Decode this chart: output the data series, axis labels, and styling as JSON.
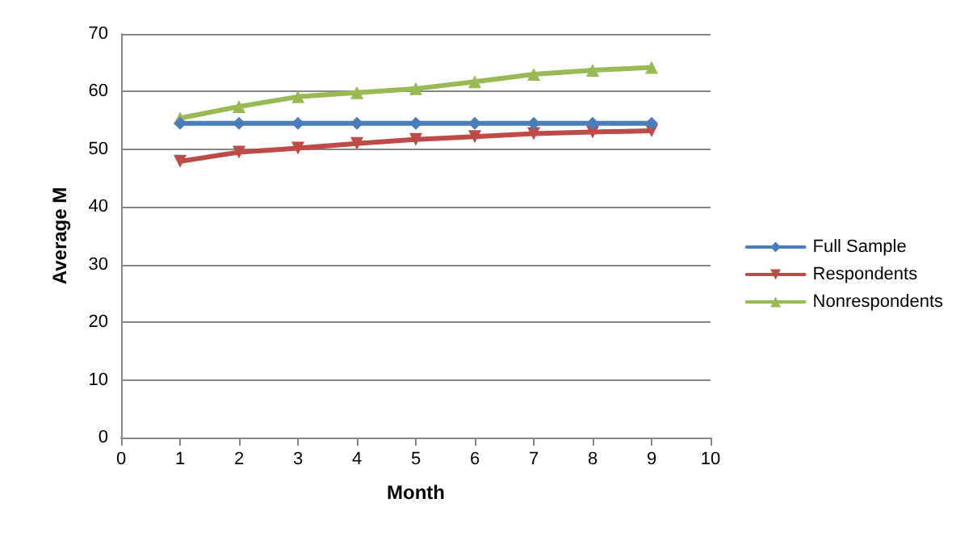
{
  "chart_data": {
    "type": "line",
    "xlabel": "Month",
    "ylabel": "Average M",
    "x": [
      1,
      2,
      3,
      4,
      5,
      6,
      7,
      8,
      9
    ],
    "series": [
      {
        "name": "Full Sample",
        "color": "#4a7ebb",
        "marker": "diamond",
        "values": [
          54.5,
          54.5,
          54.5,
          54.5,
          54.5,
          54.5,
          54.5,
          54.5,
          54.5
        ]
      },
      {
        "name": "Respondents",
        "color": "#be4b48",
        "marker": "triangle-down",
        "values": [
          47.9,
          49.5,
          50.2,
          51.0,
          51.7,
          52.2,
          52.7,
          53.0,
          53.2
        ]
      },
      {
        "name": "Nonrespondents",
        "color": "#98b954",
        "marker": "triangle",
        "values": [
          55.4,
          57.4,
          59.1,
          59.8,
          60.5,
          61.7,
          63.0,
          63.7,
          64.2
        ]
      }
    ],
    "xlim": [
      0,
      10
    ],
    "xticks": [
      0,
      1,
      2,
      3,
      4,
      5,
      6,
      7,
      8,
      9,
      10
    ],
    "ylim": [
      0,
      70
    ],
    "yticks": [
      0,
      10,
      20,
      30,
      40,
      50,
      60,
      70
    ],
    "grid": "y",
    "legend": "right",
    "line_style": "solid"
  }
}
